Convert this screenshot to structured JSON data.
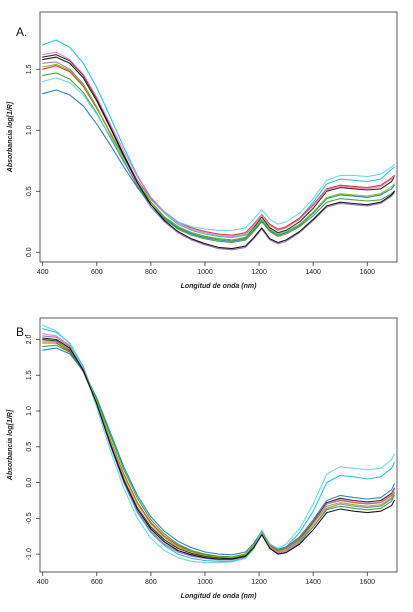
{
  "chart_data": [
    {
      "type": "line",
      "panel_label": "A.",
      "xlabel": "Longitud de onda (nm)",
      "ylabel": "Absorbancia log[1/R]",
      "xlim": [
        390,
        1710
      ],
      "ylim": [
        -0.08,
        1.97
      ],
      "xticks": [
        400,
        600,
        800,
        1000,
        1200,
        1400,
        1600
      ],
      "yticks": [
        0.0,
        0.5,
        1.0,
        1.5
      ],
      "ytick_labels": [
        "0.0",
        "0.5",
        "1.0",
        "1.5"
      ],
      "grid": false,
      "legend": "none",
      "series_style": "many overlapping spectra",
      "x": [
        400,
        450,
        500,
        550,
        600,
        650,
        700,
        750,
        800,
        850,
        900,
        950,
        1000,
        1050,
        1100,
        1150,
        1180,
        1210,
        1240,
        1270,
        1300,
        1350,
        1400,
        1450,
        1500,
        1550,
        1600,
        1650,
        1690,
        1700
      ],
      "series": [
        {
          "color": "#1b1b1b",
          "values": [
            1.6,
            1.62,
            1.57,
            1.45,
            1.26,
            1.03,
            0.8,
            0.58,
            0.41,
            0.29,
            0.21,
            0.16,
            0.13,
            0.11,
            0.1,
            0.12,
            0.2,
            0.29,
            0.2,
            0.16,
            0.18,
            0.25,
            0.36,
            0.5,
            0.53,
            0.52,
            0.51,
            0.52,
            0.58,
            0.62
          ]
        },
        {
          "color": "#17becf",
          "values": [
            1.7,
            1.74,
            1.68,
            1.55,
            1.35,
            1.11,
            0.86,
            0.63,
            0.45,
            0.32,
            0.23,
            0.18,
            0.15,
            0.13,
            0.12,
            0.14,
            0.22,
            0.31,
            0.22,
            0.18,
            0.2,
            0.28,
            0.41,
            0.56,
            0.6,
            0.59,
            0.58,
            0.6,
            0.68,
            0.7
          ]
        },
        {
          "color": "#d62728",
          "values": [
            1.5,
            1.53,
            1.48,
            1.36,
            1.18,
            0.98,
            0.78,
            0.59,
            0.44,
            0.33,
            0.25,
            0.2,
            0.17,
            0.15,
            0.14,
            0.16,
            0.23,
            0.31,
            0.23,
            0.19,
            0.21,
            0.28,
            0.39,
            0.52,
            0.55,
            0.54,
            0.53,
            0.55,
            0.61,
            0.63
          ]
        },
        {
          "color": "#2ca02c",
          "values": [
            1.45,
            1.47,
            1.42,
            1.31,
            1.14,
            0.94,
            0.74,
            0.55,
            0.39,
            0.27,
            0.19,
            0.14,
            0.11,
            0.09,
            0.08,
            0.1,
            0.17,
            0.25,
            0.17,
            0.13,
            0.15,
            0.21,
            0.3,
            0.41,
            0.44,
            0.43,
            0.42,
            0.43,
            0.48,
            0.5
          ]
        },
        {
          "color": "#9467bd",
          "values": [
            1.55,
            1.56,
            1.5,
            1.38,
            1.19,
            0.97,
            0.75,
            0.54,
            0.37,
            0.25,
            0.16,
            0.1,
            0.06,
            0.03,
            0.02,
            0.04,
            0.11,
            0.19,
            0.1,
            0.07,
            0.09,
            0.16,
            0.26,
            0.37,
            0.4,
            0.39,
            0.38,
            0.4,
            0.46,
            0.49
          ]
        },
        {
          "color": "#1f77b4",
          "values": [
            1.3,
            1.33,
            1.29,
            1.2,
            1.05,
            0.88,
            0.7,
            0.53,
            0.39,
            0.28,
            0.2,
            0.15,
            0.12,
            0.1,
            0.09,
            0.11,
            0.18,
            0.26,
            0.18,
            0.14,
            0.16,
            0.22,
            0.32,
            0.44,
            0.47,
            0.46,
            0.45,
            0.47,
            0.52,
            0.55
          ]
        },
        {
          "color": "#e377c2",
          "values": [
            1.62,
            1.64,
            1.58,
            1.46,
            1.27,
            1.05,
            0.83,
            0.62,
            0.45,
            0.33,
            0.24,
            0.19,
            0.16,
            0.14,
            0.13,
            0.15,
            0.22,
            0.31,
            0.22,
            0.18,
            0.2,
            0.27,
            0.38,
            0.51,
            0.54,
            0.53,
            0.52,
            0.54,
            0.6,
            0.62
          ]
        },
        {
          "color": "#7fb800",
          "values": [
            1.52,
            1.54,
            1.49,
            1.37,
            1.19,
            0.98,
            0.77,
            0.57,
            0.41,
            0.29,
            0.21,
            0.16,
            0.13,
            0.11,
            0.1,
            0.12,
            0.19,
            0.27,
            0.19,
            0.15,
            0.17,
            0.23,
            0.33,
            0.45,
            0.48,
            0.47,
            0.46,
            0.48,
            0.54,
            0.56
          ]
        },
        {
          "color": "#5fd3e6",
          "values": [
            1.4,
            1.43,
            1.39,
            1.29,
            1.13,
            0.95,
            0.76,
            0.58,
            0.43,
            0.32,
            0.25,
            0.21,
            0.19,
            0.18,
            0.18,
            0.2,
            0.27,
            0.35,
            0.27,
            0.23,
            0.25,
            0.32,
            0.44,
            0.59,
            0.63,
            0.63,
            0.62,
            0.64,
            0.7,
            0.72
          ]
        },
        {
          "color": "#000000",
          "values": [
            1.58,
            1.6,
            1.55,
            1.43,
            1.24,
            1.02,
            0.79,
            0.57,
            0.39,
            0.26,
            0.17,
            0.11,
            0.07,
            0.04,
            0.03,
            0.05,
            0.12,
            0.2,
            0.11,
            0.08,
            0.1,
            0.17,
            0.27,
            0.38,
            0.41,
            0.4,
            0.39,
            0.41,
            0.47,
            0.5
          ]
        }
      ]
    },
    {
      "type": "line",
      "panel_label": "B.",
      "xlabel": "Longitud de onda (nm)",
      "ylabel": "Absorbancia log[1/R]",
      "xlim": [
        390,
        1710
      ],
      "ylim": [
        -1.25,
        2.3
      ],
      "xticks": [
        400,
        600,
        800,
        1000,
        1200,
        1400,
        1600
      ],
      "yticks": [
        -1.0,
        -0.5,
        0.0,
        0.5,
        1.0,
        1.5,
        2.0
      ],
      "ytick_labels": [
        "-1.0",
        "-0.5",
        "0.0",
        "0.5",
        "1.0",
        "1.5",
        "2.0"
      ],
      "grid": false,
      "legend": "none",
      "series_style": "many overlapping spectra",
      "x": [
        400,
        450,
        500,
        550,
        600,
        650,
        700,
        750,
        800,
        850,
        900,
        950,
        1000,
        1050,
        1100,
        1150,
        1180,
        1210,
        1240,
        1270,
        1300,
        1350,
        1400,
        1450,
        1500,
        1550,
        1600,
        1650,
        1690,
        1700
      ],
      "series": [
        {
          "color": "#1b1b1b",
          "values": [
            2.0,
            1.98,
            1.85,
            1.55,
            1.1,
            0.55,
            0.05,
            -0.35,
            -0.62,
            -0.8,
            -0.92,
            -0.99,
            -1.03,
            -1.05,
            -1.06,
            -1.02,
            -0.9,
            -0.7,
            -0.9,
            -0.98,
            -0.95,
            -0.8,
            -0.55,
            -0.28,
            -0.22,
            -0.25,
            -0.27,
            -0.25,
            -0.15,
            -0.08
          ]
        },
        {
          "color": "#17becf",
          "values": [
            2.15,
            2.1,
            1.95,
            1.62,
            1.12,
            0.52,
            0.0,
            -0.42,
            -0.7,
            -0.88,
            -1.0,
            -1.06,
            -1.09,
            -1.1,
            -1.1,
            -1.05,
            -0.92,
            -0.68,
            -0.88,
            -0.95,
            -0.9,
            -0.7,
            -0.4,
            0.0,
            0.1,
            0.08,
            0.05,
            0.08,
            0.2,
            0.28
          ]
        },
        {
          "color": "#d62728",
          "values": [
            1.95,
            1.95,
            1.83,
            1.55,
            1.12,
            0.6,
            0.12,
            -0.28,
            -0.56,
            -0.75,
            -0.88,
            -0.96,
            -1.01,
            -1.03,
            -1.04,
            -1.0,
            -0.88,
            -0.7,
            -0.88,
            -0.95,
            -0.92,
            -0.78,
            -0.55,
            -0.3,
            -0.25,
            -0.28,
            -0.3,
            -0.28,
            -0.18,
            -0.1
          ]
        },
        {
          "color": "#2ca02c",
          "values": [
            1.9,
            1.92,
            1.82,
            1.56,
            1.16,
            0.66,
            0.18,
            -0.22,
            -0.52,
            -0.72,
            -0.86,
            -0.95,
            -1.0,
            -1.03,
            -1.04,
            -1.0,
            -0.88,
            -0.72,
            -0.9,
            -0.97,
            -0.95,
            -0.82,
            -0.62,
            -0.38,
            -0.33,
            -0.36,
            -0.38,
            -0.36,
            -0.26,
            -0.18
          ]
        },
        {
          "color": "#9467bd",
          "values": [
            2.05,
            2.03,
            1.9,
            1.58,
            1.1,
            0.52,
            0.0,
            -0.4,
            -0.68,
            -0.86,
            -0.97,
            -1.03,
            -1.06,
            -1.08,
            -1.08,
            -1.04,
            -0.92,
            -0.72,
            -0.92,
            -1.0,
            -0.97,
            -0.84,
            -0.62,
            -0.36,
            -0.3,
            -0.33,
            -0.35,
            -0.33,
            -0.23,
            -0.15
          ]
        },
        {
          "color": "#1f77b4",
          "values": [
            1.85,
            1.88,
            1.8,
            1.56,
            1.18,
            0.7,
            0.22,
            -0.18,
            -0.48,
            -0.68,
            -0.82,
            -0.91,
            -0.97,
            -1.0,
            -1.01,
            -0.97,
            -0.85,
            -0.68,
            -0.86,
            -0.93,
            -0.9,
            -0.76,
            -0.52,
            -0.25,
            -0.18,
            -0.21,
            -0.23,
            -0.21,
            -0.1,
            -0.02
          ]
        },
        {
          "color": "#e377c2",
          "values": [
            2.08,
            2.05,
            1.92,
            1.6,
            1.12,
            0.55,
            0.04,
            -0.36,
            -0.64,
            -0.83,
            -0.95,
            -1.02,
            -1.05,
            -1.07,
            -1.08,
            -1.04,
            -0.91,
            -0.7,
            -0.9,
            -0.98,
            -0.95,
            -0.81,
            -0.58,
            -0.3,
            -0.24,
            -0.27,
            -0.29,
            -0.27,
            -0.17,
            -0.09
          ]
        },
        {
          "color": "#7fb800",
          "values": [
            1.98,
            1.97,
            1.86,
            1.57,
            1.13,
            0.6,
            0.1,
            -0.3,
            -0.58,
            -0.77,
            -0.9,
            -0.97,
            -1.02,
            -1.04,
            -1.05,
            -1.01,
            -0.89,
            -0.71,
            -0.89,
            -0.96,
            -0.93,
            -0.8,
            -0.58,
            -0.33,
            -0.28,
            -0.31,
            -0.33,
            -0.31,
            -0.21,
            -0.13
          ]
        },
        {
          "color": "#5fd3e6",
          "values": [
            2.2,
            2.12,
            1.94,
            1.58,
            1.05,
            0.45,
            -0.08,
            -0.5,
            -0.78,
            -0.95,
            -1.05,
            -1.1,
            -1.12,
            -1.12,
            -1.11,
            -1.06,
            -0.93,
            -0.66,
            -0.86,
            -0.92,
            -0.86,
            -0.64,
            -0.3,
            0.12,
            0.22,
            0.2,
            0.18,
            0.2,
            0.32,
            0.4
          ]
        },
        {
          "color": "#000000",
          "values": [
            2.02,
            2.0,
            1.88,
            1.57,
            1.1,
            0.54,
            0.03,
            -0.37,
            -0.65,
            -0.83,
            -0.95,
            -1.01,
            -1.05,
            -1.07,
            -1.07,
            -1.03,
            -0.91,
            -0.73,
            -0.92,
            -1.0,
            -0.98,
            -0.86,
            -0.66,
            -0.42,
            -0.37,
            -0.4,
            -0.42,
            -0.4,
            -0.32,
            -0.25
          ]
        }
      ]
    }
  ]
}
